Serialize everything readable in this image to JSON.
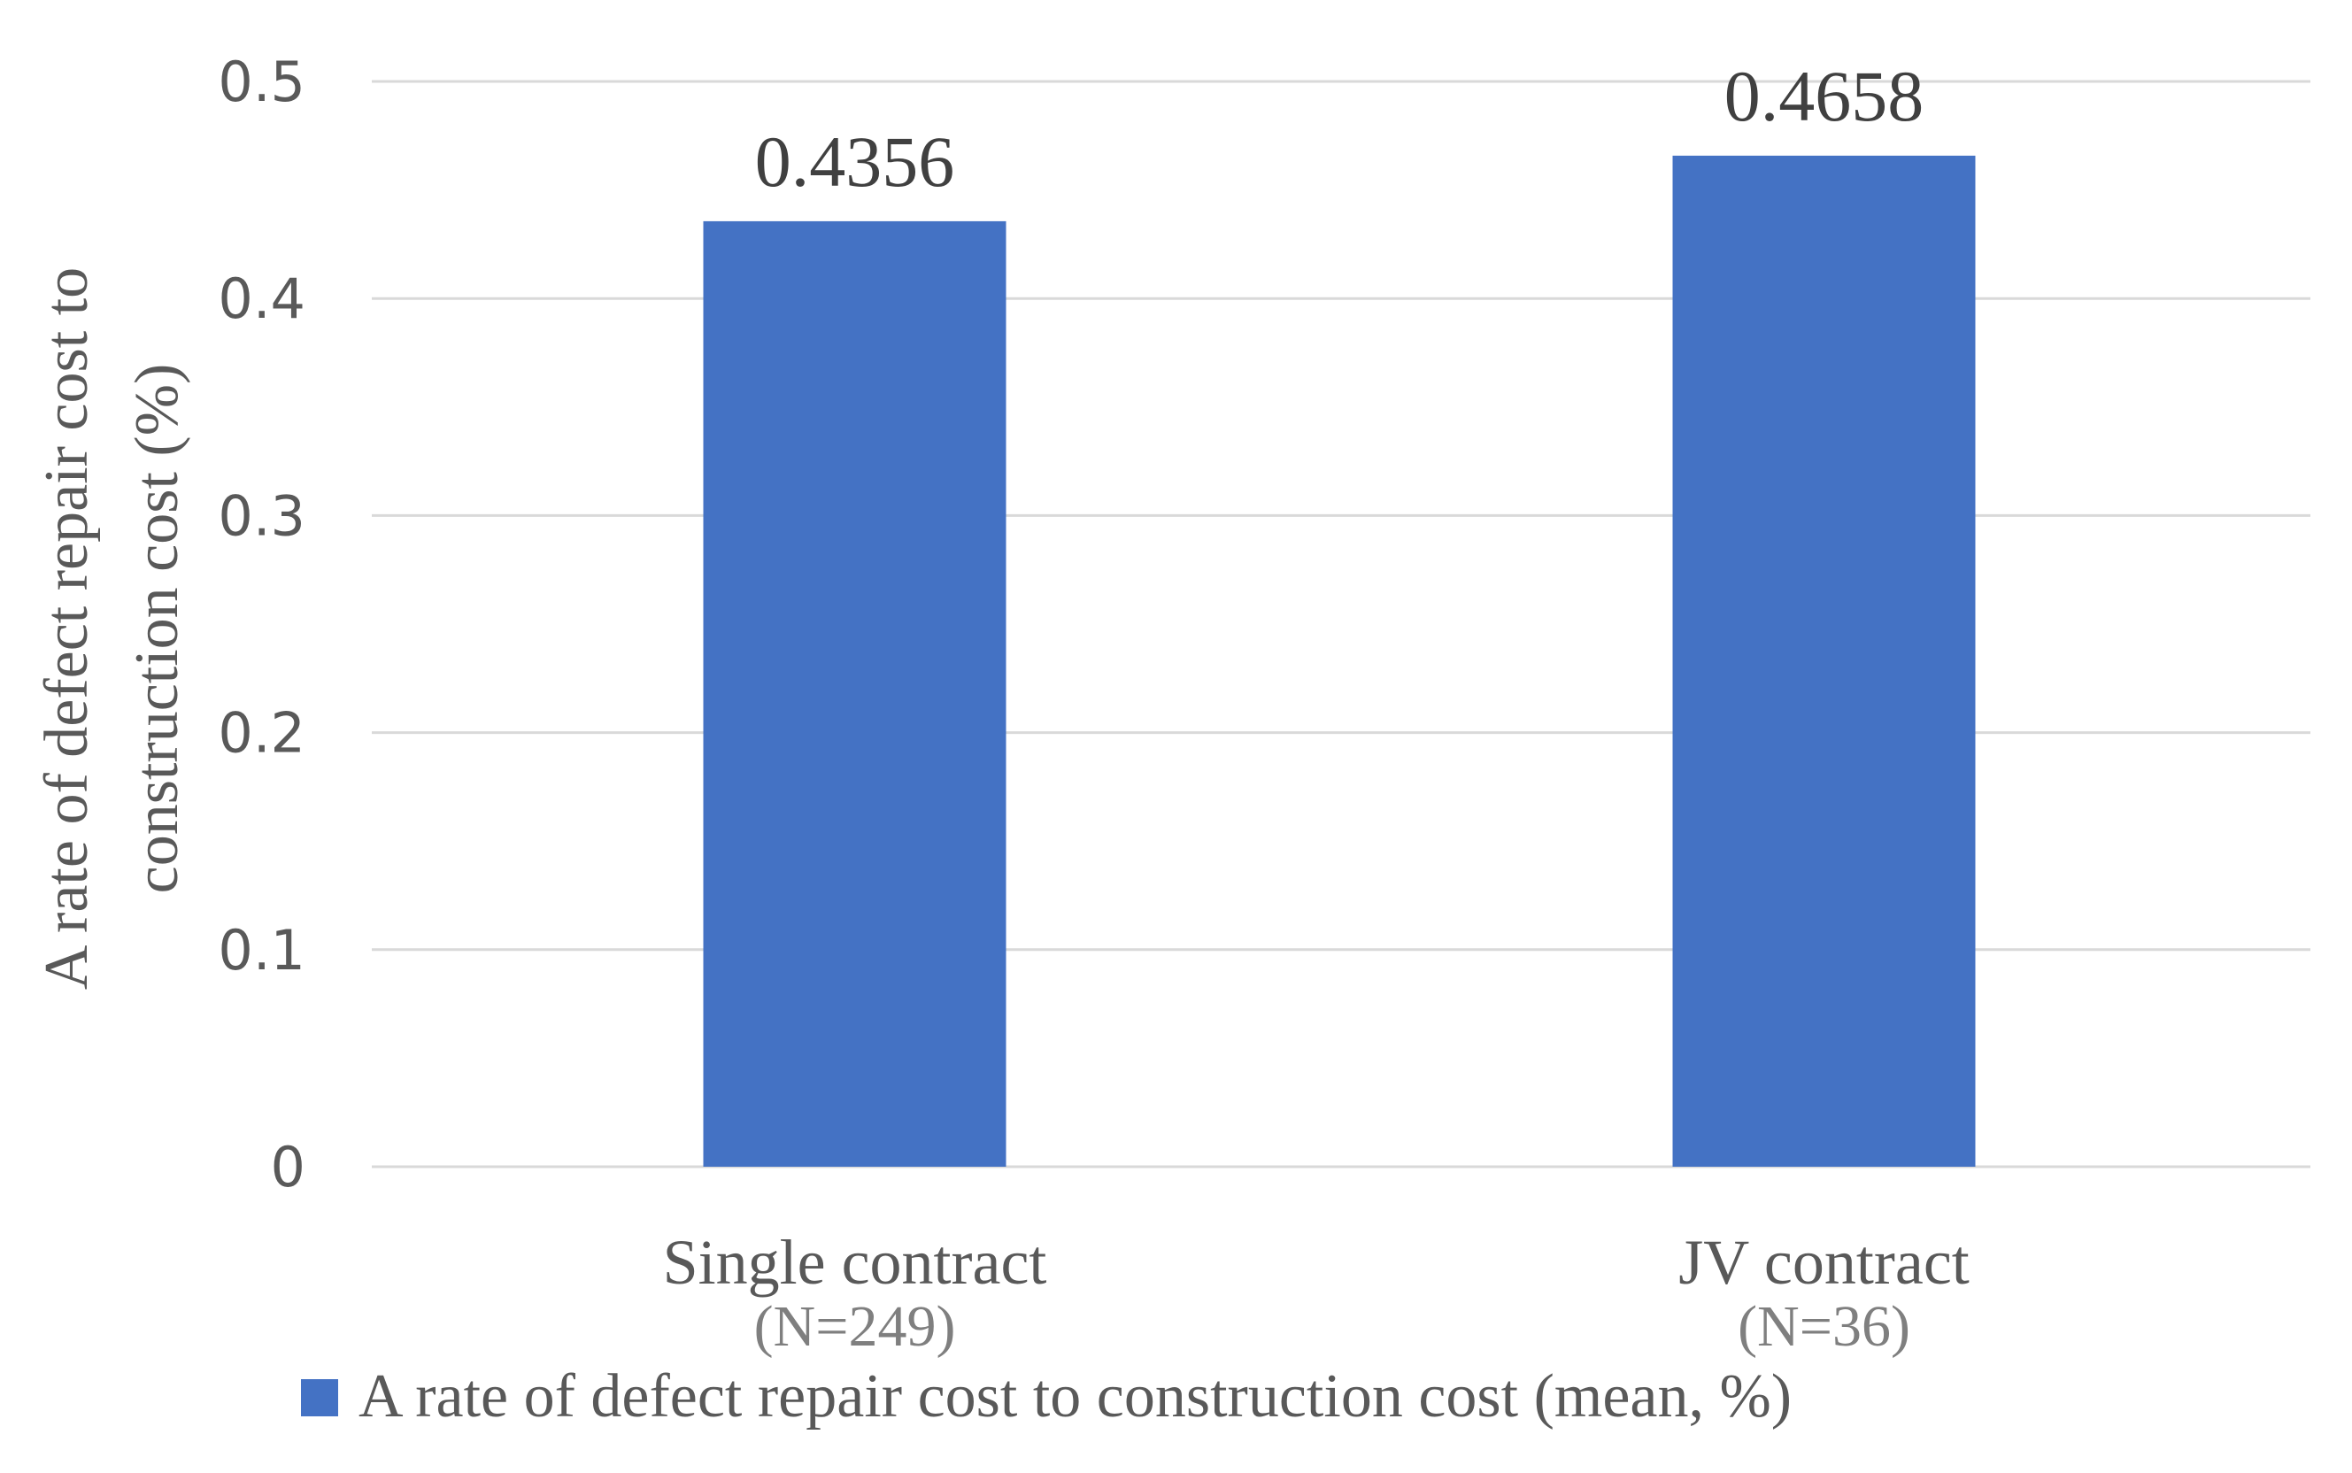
{
  "chart_data": {
    "type": "bar",
    "title": "",
    "categories": [
      "Single contract",
      "JV contract"
    ],
    "category_sublabels": [
      "(N=249)",
      "(N=36)"
    ],
    "series": [
      {
        "name": "A rate of defect repair cost to construction cost (mean, %)",
        "values": [
          0.4356,
          0.4658
        ],
        "data_labels": [
          "0.4356",
          "0.4658"
        ],
        "color": "#4472c4"
      }
    ],
    "xlabel": "",
    "ylabel_lines": [
      "A rate of defect repair cost to",
      "construction cost (%)"
    ],
    "ylim": [
      0,
      0.5
    ],
    "yticks": [
      0,
      0.1,
      0.2,
      0.3,
      0.4,
      0.5
    ],
    "ytick_labels": [
      "0",
      "0.1",
      "0.2",
      "0.3",
      "0.4",
      "0.5"
    ],
    "grid": true,
    "legend_position": "bottom"
  }
}
